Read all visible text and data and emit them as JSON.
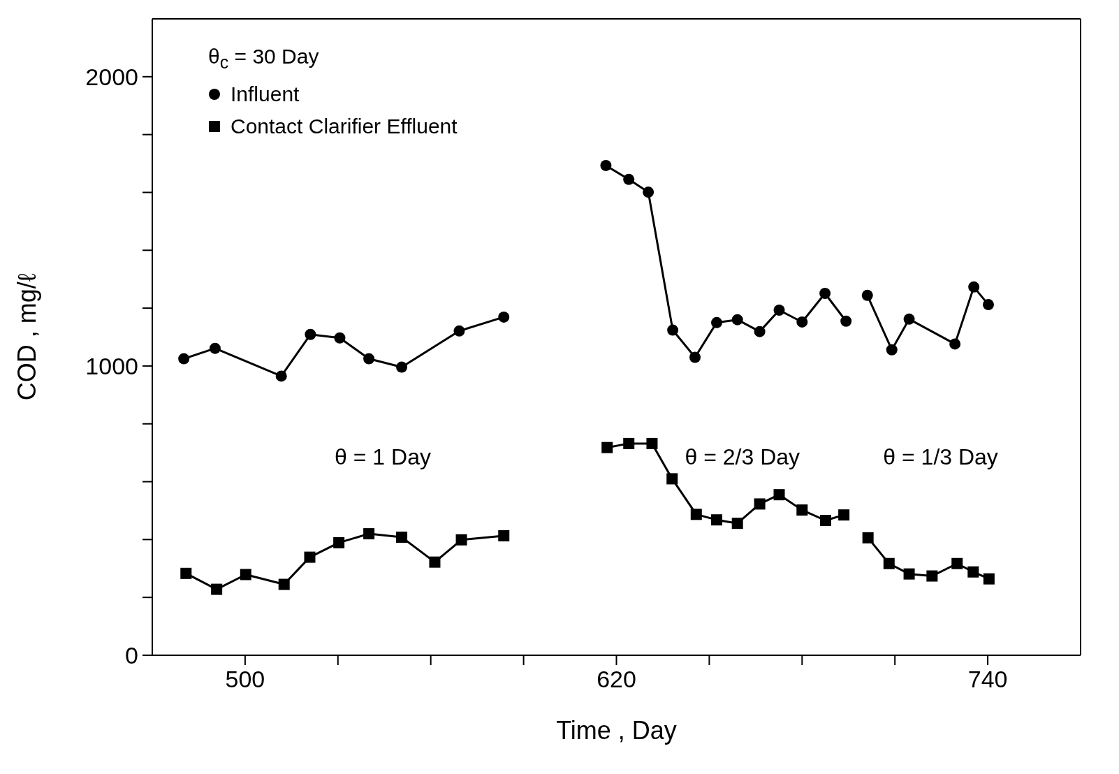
{
  "chart_data": {
    "type": "line",
    "xlabel": "Time , Day",
    "ylabel": "COD , mg/ℓ",
    "legend_title": "θ$_{c}$ = 30 Day",
    "series": [
      {
        "name": "Influent",
        "color": "#000000",
        "marker": "circle",
        "x": [
          480.2,
          490.3,
          511.7,
          521.1,
          530.6,
          540,
          550.6,
          569.2,
          583.6,
          600,
          616.6,
          624,
          630.3,
          638.2,
          645.4,
          652.4,
          659.1,
          666.3,
          672.6,
          680,
          687.4,
          694.2,
          698,
          701.1,
          709,
          714.6,
          729.4,
          735.5,
          740.2
        ],
        "values": [
          1025,
          1061,
          965,
          1109,
          1097,
          1025,
          996,
          1121,
          1169,
          null,
          1693,
          1645,
          1601,
          1124,
          1030,
          1150,
          1160,
          1119,
          1193,
          1152,
          1251,
          1155,
          null,
          1244,
          1056,
          1162,
          1076,
          1273,
          1212
        ]
      },
      {
        "name": "Contact Clarifier Effluent",
        "color": "#000000",
        "marker": "square",
        "x": [
          480.9,
          490.8,
          500.2,
          512.6,
          520.9,
          530.3,
          540,
          550.6,
          561.3,
          569.9,
          583.6,
          600,
          617,
          624,
          631.5,
          638,
          645.8,
          652.4,
          659.1,
          666.3,
          672.6,
          680,
          687.6,
          693.5,
          698,
          701.3,
          708.1,
          714.6,
          722,
          730.1,
          735.3,
          740.4
        ],
        "values": [
          283,
          228,
          279,
          245,
          339,
          389,
          420,
          408,
          322,
          399,
          413,
          null,
          718,
          732,
          732,
          610,
          487,
          468,
          456,
          523,
          555,
          502,
          466,
          485,
          null,
          406,
          317,
          281,
          274,
          317,
          288,
          264
        ]
      }
    ],
    "xlim": [
      470,
      770
    ],
    "xticks": [
      500,
      {
        "value": 530,
        "label": null
      },
      {
        "value": 560,
        "label": null
      },
      {
        "value": 590,
        "label": null
      },
      620,
      {
        "value": 650,
        "label": null
      },
      {
        "value": 680,
        "label": null
      },
      {
        "value": 710,
        "label": null
      },
      740
    ],
    "ylim": [
      0,
      2200
    ],
    "yticks": [
      0,
      {
        "value": 200,
        "label": null
      },
      {
        "value": 400,
        "label": null
      },
      {
        "value": 600,
        "label": null
      },
      {
        "value": 800,
        "label": null
      },
      1000,
      {
        "value": 1200,
        "label": null
      },
      {
        "value": 1400,
        "label": null
      },
      {
        "value": 1600,
        "label": null
      },
      {
        "value": 1800,
        "label": null
      },
      2000
    ],
    "annotations": [
      "θ = 1 Day",
      "θ = 2/3 Day",
      "θ = 1/3 Day"
    ],
    "legend": "top left",
    "line_style": "solid"
  }
}
